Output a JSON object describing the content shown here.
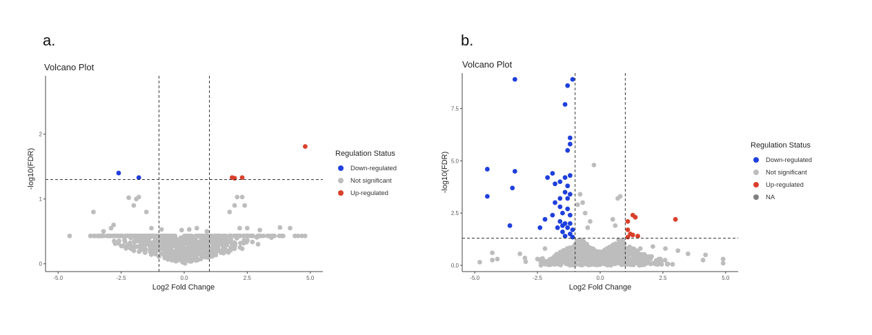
{
  "figure": {
    "panel_a_letter": "a.",
    "panel_b_letter": "b."
  },
  "colors": {
    "down": "#1f3fdc",
    "ns": "#bdbdbd",
    "up": "#d9402a",
    "na": "#7f7f7f",
    "threshold": "#333333",
    "axis": "#444444"
  },
  "chart_data": [
    {
      "type": "scatter",
      "title": "Volcano Plot",
      "xlabel": "Log2 Fold Change",
      "ylabel": "-log10(FDR)",
      "xlim": [
        -5.5,
        5.5
      ],
      "ylim": [
        -0.12,
        2.9
      ],
      "x_ticks": [
        -5.0,
        -2.5,
        0.0,
        2.5,
        5.0
      ],
      "x_tick_labels": [
        "-5.0",
        "-2.5",
        "0.0",
        "2.5",
        "5.0"
      ],
      "y_ticks": [
        0,
        1,
        2
      ],
      "y_tick_labels": [
        "0",
        "1",
        "2"
      ],
      "grid": false,
      "legend_position": "right",
      "thresholds": {
        "x": [
          -1,
          1
        ],
        "y": 1.3
      },
      "legend": {
        "title": "Regulation Status",
        "entries": [
          "Down-regulated",
          "Not significant",
          "Up-regulated"
        ]
      },
      "series": [
        {
          "name": "Down-regulated",
          "points": [
            [
              -2.6,
              1.4
            ],
            [
              -1.8,
              1.33
            ]
          ]
        },
        {
          "name": "Up-regulated",
          "points": [
            [
              1.9,
              1.33
            ],
            [
              2.0,
              1.32
            ],
            [
              2.3,
              1.33
            ],
            [
              4.8,
              1.81
            ]
          ]
        },
        {
          "name": "Not significant",
          "points": [
            [
              -3.6,
              0.8
            ],
            [
              -2.2,
              1.02
            ],
            [
              -1.9,
              1.0
            ],
            [
              -1.8,
              1.03
            ],
            [
              -1.5,
              0.8
            ],
            [
              -2.0,
              0.9
            ],
            [
              -2.9,
              0.55
            ],
            [
              -2.8,
              0.6
            ],
            [
              -3.2,
              0.5
            ],
            [
              -1.3,
              0.55
            ],
            [
              -0.9,
              0.53
            ],
            [
              -0.1,
              0.52
            ],
            [
              0.2,
              0.53
            ],
            [
              0.5,
              0.55
            ],
            [
              0.9,
              0.5
            ],
            [
              1.8,
              0.8
            ],
            [
              2.0,
              0.9
            ],
            [
              2.1,
              1.03
            ],
            [
              2.3,
              1.03
            ],
            [
              2.4,
              0.9
            ],
            [
              2.2,
              0.55
            ],
            [
              2.5,
              0.55
            ],
            [
              3.0,
              0.52
            ],
            [
              3.8,
              0.56
            ],
            [
              4.2,
              0.55
            ]
          ]
        }
      ]
    },
    {
      "type": "scatter",
      "title": "Volcano Plot",
      "xlabel": "Log2 Fold Change",
      "ylabel": "-log10(FDR)",
      "xlim": [
        -5.5,
        5.5
      ],
      "ylim": [
        -0.3,
        9.2
      ],
      "x_ticks": [
        -5.0,
        -2.5,
        0.0,
        2.5,
        5.0
      ],
      "x_tick_labels": [
        "-5.0",
        "-2.5",
        "0.0",
        "2.5",
        "5.0"
      ],
      "y_ticks": [
        0.0,
        2.5,
        5.0,
        7.5
      ],
      "y_tick_labels": [
        "0.0",
        "2.5",
        "5.0",
        "7.5"
      ],
      "grid": false,
      "legend_position": "right",
      "thresholds": {
        "x": [
          -1,
          1
        ],
        "y": 1.3
      },
      "legend": {
        "title": "Regulation Status",
        "entries": [
          "Down-regulated",
          "Not significant",
          "Up-regulated",
          "NA"
        ]
      },
      "series": [
        {
          "name": "Down-regulated",
          "points": [
            [
              -3.4,
              8.9
            ],
            [
              -1.1,
              8.9
            ],
            [
              -1.3,
              8.6
            ],
            [
              -1.4,
              7.7
            ],
            [
              -1.2,
              6.1
            ],
            [
              -1.2,
              5.8
            ],
            [
              -1.3,
              5.5
            ],
            [
              -4.5,
              4.6
            ],
            [
              -3.4,
              4.5
            ],
            [
              -1.9,
              4.4
            ],
            [
              -2.1,
              4.2
            ],
            [
              -1.4,
              4.2
            ],
            [
              -1.2,
              4.3
            ],
            [
              -1.6,
              4.0
            ],
            [
              -1.8,
              3.9
            ],
            [
              -1.3,
              3.8
            ],
            [
              -3.5,
              3.7
            ],
            [
              -1.4,
              3.5
            ],
            [
              -1.2,
              3.4
            ],
            [
              -1.6,
              3.2
            ],
            [
              -4.5,
              3.3
            ],
            [
              -1.3,
              3.2
            ],
            [
              -1.8,
              3.0
            ],
            [
              -1.6,
              2.8
            ],
            [
              -1.3,
              2.7
            ],
            [
              -1.5,
              2.5
            ],
            [
              -1.9,
              2.4
            ],
            [
              -1.2,
              2.4
            ],
            [
              -2.2,
              2.2
            ],
            [
              -1.6,
              2.1
            ],
            [
              -1.4,
              2.0
            ],
            [
              -1.2,
              2.0
            ],
            [
              -3.6,
              1.9
            ],
            [
              -1.5,
              1.9
            ],
            [
              -2.4,
              1.8
            ],
            [
              -1.7,
              1.8
            ],
            [
              -1.3,
              1.8
            ],
            [
              -1.1,
              1.7
            ],
            [
              -1.5,
              1.6
            ],
            [
              -1.2,
              1.5
            ],
            [
              -1.4,
              1.4
            ],
            [
              -1.1,
              1.35
            ]
          ]
        },
        {
          "name": "Up-regulated",
          "points": [
            [
              1.3,
              2.4
            ],
            [
              1.4,
              2.3
            ],
            [
              1.1,
              2.1
            ],
            [
              3.0,
              2.2
            ],
            [
              1.1,
              1.7
            ],
            [
              1.2,
              1.5
            ],
            [
              1.3,
              1.45
            ],
            [
              1.5,
              1.4
            ],
            [
              1.1,
              1.35
            ]
          ]
        },
        {
          "name": "Not significant",
          "points": [
            [
              -0.25,
              4.8
            ],
            [
              -0.8,
              3.4
            ],
            [
              -0.7,
              3.0
            ],
            [
              -0.9,
              2.9
            ],
            [
              -0.6,
              2.5
            ],
            [
              -0.4,
              2.1
            ],
            [
              -0.5,
              1.8
            ],
            [
              0.5,
              2.2
            ],
            [
              0.7,
              3.2
            ],
            [
              0.8,
              3.3
            ],
            [
              0.6,
              1.9
            ],
            [
              0.9,
              1.2
            ],
            [
              1.6,
              0.8
            ],
            [
              2.1,
              0.9
            ],
            [
              2.6,
              0.8
            ],
            [
              3.1,
              0.7
            ],
            [
              3.5,
              0.55
            ],
            [
              4.1,
              0.25
            ],
            [
              4.2,
              0.5
            ],
            [
              -4.3,
              0.6
            ],
            [
              -4.3,
              0.25
            ],
            [
              -4.1,
              0.3
            ],
            [
              -3.2,
              0.55
            ],
            [
              -3.0,
              0.35
            ],
            [
              -2.2,
              0.8
            ],
            [
              -2.5,
              0.3
            ],
            [
              -2.0,
              0.15
            ],
            [
              1.8,
              0.3
            ],
            [
              2.4,
              0.3
            ],
            [
              1.2,
              0.6
            ],
            [
              -1.6,
              0.5
            ],
            [
              -1.0,
              0.9
            ],
            [
              0.3,
              0.8
            ],
            [
              4.9,
              0.3
            ],
            [
              4.9,
              0.1
            ],
            [
              -4.8,
              0.15
            ]
          ]
        },
        {
          "name": "NA",
          "points": []
        }
      ]
    }
  ]
}
